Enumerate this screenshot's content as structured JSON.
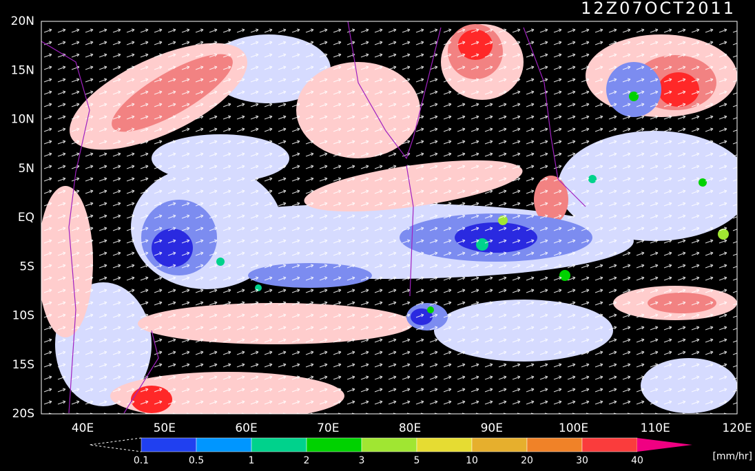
{
  "title": "12Z07OCT2011",
  "map": {
    "lat_labels": [
      "20N",
      "15N",
      "10N",
      "5N",
      "EQ",
      "5S",
      "10S",
      "15S",
      "20S"
    ],
    "lon_labels": [
      "40E",
      "50E",
      "60E",
      "70E",
      "80E",
      "90E",
      "100E",
      "110E",
      "120E"
    ]
  },
  "colorbar": {
    "colors": [
      "#2040f0",
      "#0096ff",
      "#00d28c",
      "#00d200",
      "#a0e632",
      "#e6dc32",
      "#e6af2d",
      "#f08228",
      "#fa3c3c"
    ],
    "over_color": "#f00082",
    "labels": [
      "0.1",
      "0.5",
      "1",
      "2",
      "3",
      "5",
      "10",
      "20",
      "30",
      "40"
    ],
    "unit": "[mm/hr]"
  }
}
